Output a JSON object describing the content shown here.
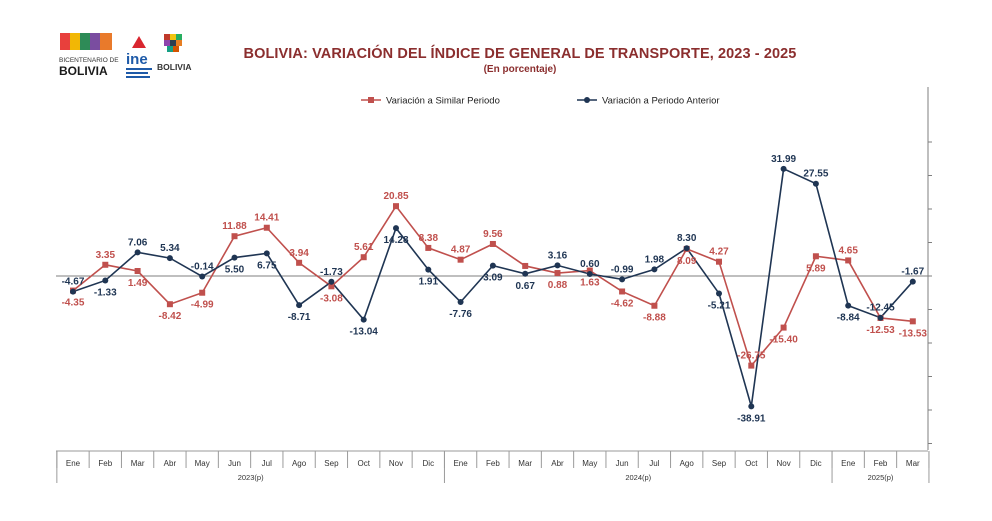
{
  "header": {
    "title": "BOLIVIA: VARIACIÓN DEL ÍNDICE DE GENERAL DE TRANSPORTE,  2023 - 2025",
    "subtitle": "(En porcentaje)",
    "logos": {
      "bicentenario_line1": "BICENTENARIO DE",
      "bicentenario_line2": "BOLIVIA",
      "ine": "ine",
      "estado": "BOLIVIA"
    }
  },
  "chart_data": {
    "type": "line",
    "categories": [
      "Ene",
      "Feb",
      "Mar",
      "Abr",
      "May",
      "Jun",
      "Jul",
      "Ago",
      "Sep",
      "Oct",
      "Nov",
      "Dic",
      "Ene",
      "Feb",
      "Mar",
      "Abr",
      "May",
      "Jun",
      "Jul",
      "Ago",
      "Sep",
      "Oct",
      "Nov",
      "Dic",
      "Ene",
      "Feb",
      "Mar"
    ],
    "year_groups": [
      {
        "label": "2023(p)",
        "count": 12
      },
      {
        "label": "2024(p)",
        "count": 12
      },
      {
        "label": "2025(p)",
        "count": 3
      }
    ],
    "ylim": [
      -50,
      40
    ],
    "series": [
      {
        "name": "Variación a Similar Periodo",
        "color": "#C0504D",
        "marker": "square",
        "values": [
          -4.35,
          3.35,
          1.49,
          -8.42,
          -4.99,
          11.88,
          14.41,
          3.94,
          -3.08,
          5.61,
          20.85,
          8.38,
          4.87,
          9.56,
          3.0,
          0.88,
          1.63,
          -4.62,
          -8.88,
          8.09,
          4.27,
          -26.75,
          -15.4,
          5.89,
          4.65,
          -12.53,
          -13.53
        ],
        "labels": [
          "-4.35",
          "3.35",
          "1.49",
          "-8.42",
          "-4.99",
          "11.88",
          "14.41",
          "3.94",
          "-3.08",
          "5.61",
          "20.85",
          "8.38",
          "4.87",
          "9.56",
          "",
          "0.88",
          "1.63",
          "-4.62",
          "-8.88",
          "8.09",
          "4.27",
          "-26.75",
          "-15.40",
          "5.89",
          "4.65",
          "-12.53",
          "-13.53"
        ]
      },
      {
        "name": "Variación a Periodo Anterior",
        "color": "#1F3553",
        "marker": "circle",
        "values": [
          -4.67,
          -1.33,
          7.06,
          5.34,
          -0.14,
          5.5,
          6.75,
          -8.71,
          -1.73,
          -13.04,
          14.28,
          1.91,
          -7.76,
          3.09,
          0.67,
          3.16,
          0.6,
          -0.99,
          1.98,
          8.3,
          -5.21,
          -38.91,
          31.99,
          27.55,
          -8.84,
          -12.45,
          -1.67
        ],
        "labels": [
          "-4.67",
          "-1.33",
          "7.06",
          "5.34",
          "-0.14",
          "5.50",
          "6.75",
          "-8.71",
          "-1.73",
          "-13.04",
          "14.28",
          "1.91",
          "-7.76",
          "3.09",
          "0.67",
          "3.16",
          "0.60",
          "-0.99",
          "1.98",
          "8.30",
          "-5.21",
          "-38.91",
          "31.99",
          "27.55",
          "-8.84",
          "-12.45",
          "-1.67"
        ]
      }
    ]
  }
}
